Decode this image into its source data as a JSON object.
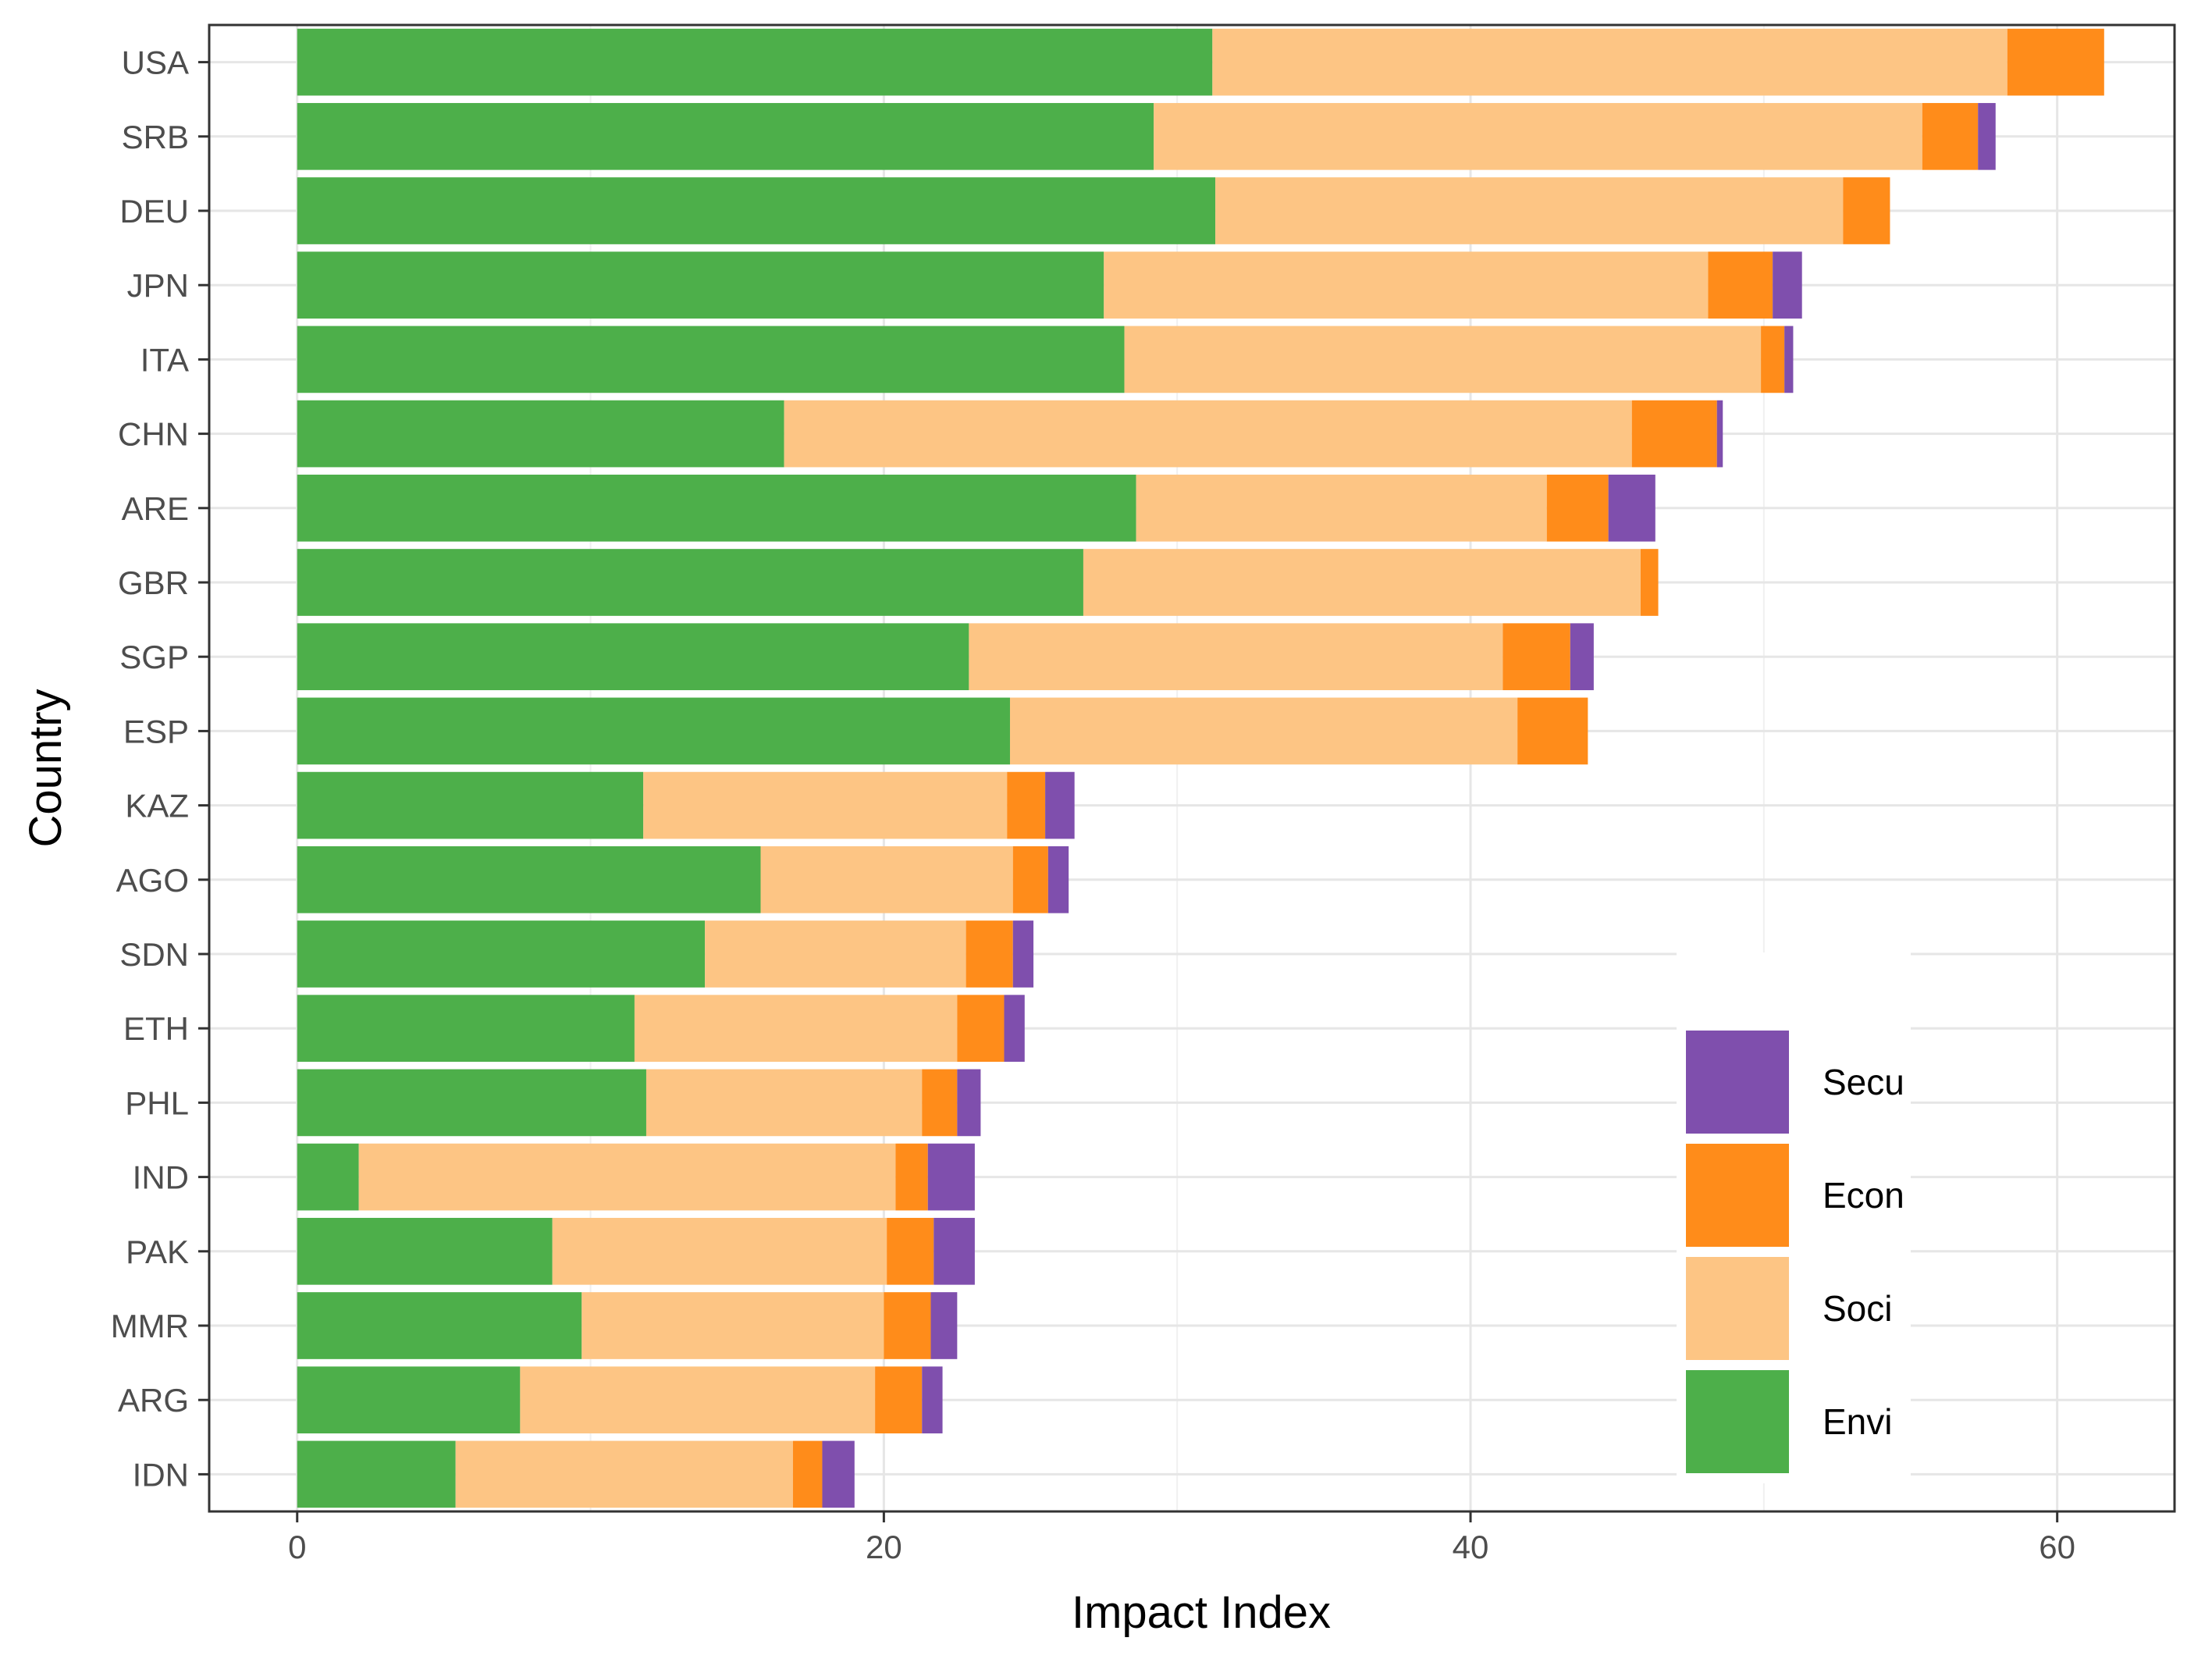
{
  "chart_data": {
    "type": "bar",
    "orientation": "horizontal",
    "stacked": true,
    "xlabel": "Impact Index",
    "ylabel": "Country",
    "xlim": [
      -3,
      64
    ],
    "xticks": [
      0,
      20,
      40,
      60
    ],
    "grid": true,
    "legend_position": "bottom-right",
    "categories": [
      "USA",
      "SRB",
      "DEU",
      "JPN",
      "ITA",
      "CHN",
      "ARE",
      "GBR",
      "SGP",
      "ESP",
      "KAZ",
      "AGO",
      "SDN",
      "ETH",
      "PHL",
      "IND",
      "PAK",
      "MMR",
      "ARG",
      "IDN"
    ],
    "series": [
      {
        "name": "Envi",
        "color": "#4daf4a",
        "values": [
          31.2,
          29.2,
          31.3,
          27.5,
          28.2,
          16.6,
          28.6,
          26.8,
          22.9,
          24.3,
          11.8,
          15.8,
          13.9,
          11.5,
          11.9,
          2.1,
          8.7,
          9.7,
          7.6,
          5.4
        ]
      },
      {
        "name": "Soci",
        "color": "#fdc584",
        "values": [
          27.1,
          26.2,
          21.4,
          20.6,
          21.7,
          28.9,
          14.0,
          19.0,
          18.2,
          17.3,
          12.4,
          8.6,
          8.9,
          11.0,
          9.4,
          18.3,
          11.4,
          10.3,
          12.1,
          11.5
        ]
      },
      {
        "name": "Econ",
        "color": "#ff8c1a",
        "values": [
          3.3,
          1.9,
          1.6,
          2.2,
          0.8,
          2.9,
          2.1,
          0.6,
          2.3,
          2.4,
          1.3,
          1.2,
          1.6,
          1.6,
          1.2,
          1.1,
          1.6,
          1.6,
          1.6,
          1.0
        ]
      },
      {
        "name": "Secu",
        "color": "#7f4fad",
        "values": [
          0,
          0.6,
          0,
          1.0,
          0.3,
          0.2,
          1.6,
          0,
          0.8,
          0,
          1.0,
          0.7,
          0.7,
          0.7,
          0.8,
          1.6,
          1.4,
          0.9,
          0.7,
          1.1
        ]
      }
    ],
    "legend_order": [
      "Secu",
      "Econ",
      "Soci",
      "Envi"
    ]
  }
}
